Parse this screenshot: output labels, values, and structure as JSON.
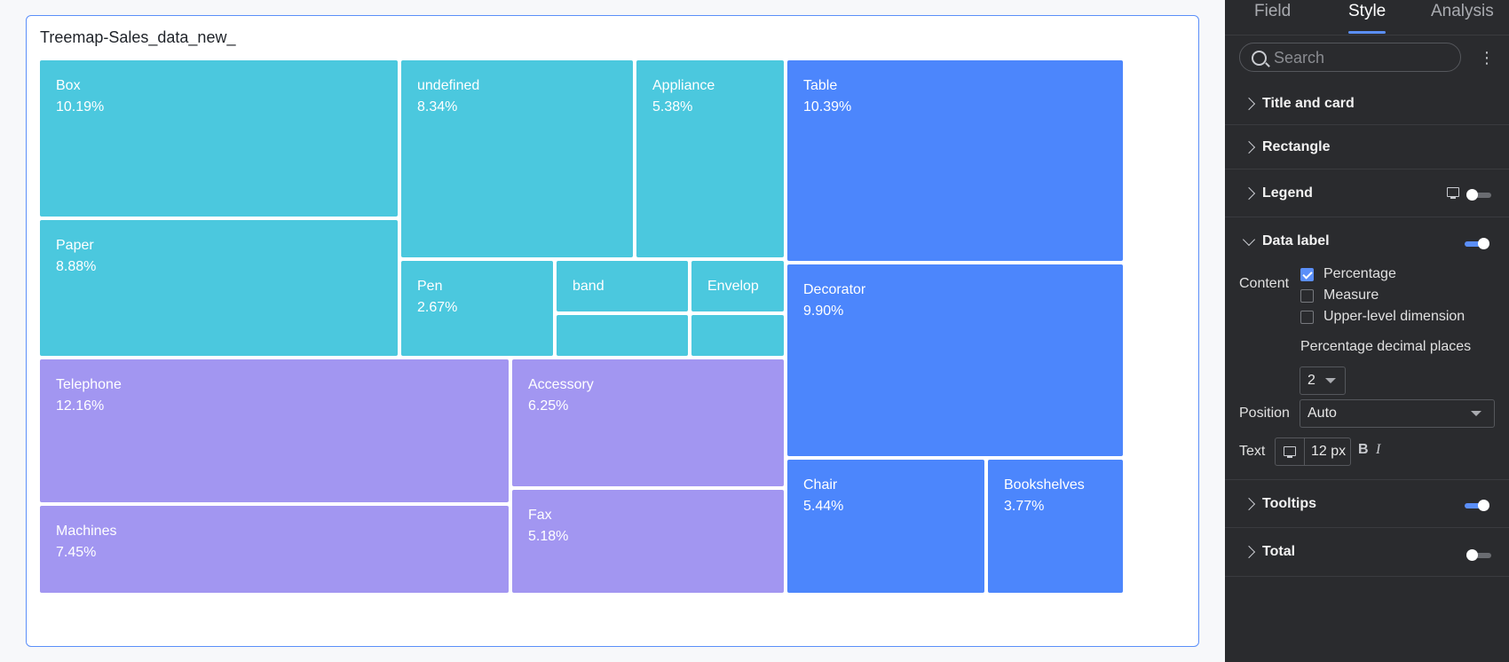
{
  "chart": {
    "title": "Treemap-Sales_data_new_"
  },
  "colors": {
    "teal": "#4bc8de",
    "purple": "#a296f1",
    "blue": "#4c86fc",
    "accent": "#5b8ff9",
    "panel_bg": "#2a2b2e"
  },
  "chart_data": {
    "type": "treemap",
    "title": "Treemap-Sales_data_new_",
    "groups": [
      {
        "color": "#4bc8de",
        "items": [
          {
            "name": "Box",
            "percentage": "10.19%"
          },
          {
            "name": "Paper",
            "percentage": "8.88%"
          },
          {
            "name": "undefined",
            "percentage": "8.34%"
          },
          {
            "name": "Appliance",
            "percentage": "5.38%"
          },
          {
            "name": "Pen",
            "percentage": "2.67%"
          },
          {
            "name": "band",
            "percentage": ""
          },
          {
            "name": "Envelop",
            "percentage": ""
          },
          {
            "name": "",
            "percentage": ""
          },
          {
            "name": "",
            "percentage": ""
          }
        ]
      },
      {
        "color": "#a296f1",
        "items": [
          {
            "name": "Telephone",
            "percentage": "12.16%"
          },
          {
            "name": "Machines",
            "percentage": "7.45%"
          },
          {
            "name": "Accessory",
            "percentage": "6.25%"
          },
          {
            "name": "Fax",
            "percentage": "5.18%"
          }
        ]
      },
      {
        "color": "#4c86fc",
        "items": [
          {
            "name": "Table",
            "percentage": "10.39%"
          },
          {
            "name": "Decorator",
            "percentage": "9.90%"
          },
          {
            "name": "Chair",
            "percentage": "5.44%"
          },
          {
            "name": "Bookshelves",
            "percentage": "3.77%"
          }
        ]
      }
    ]
  },
  "panel": {
    "tabs": [
      {
        "label": "Field"
      },
      {
        "label": "Style"
      },
      {
        "label": "Analysis"
      }
    ],
    "search": {
      "placeholder": "Search"
    },
    "sections": {
      "title_card": "Title and card",
      "rectangle": "Rectangle",
      "legend": "Legend",
      "data_label": "Data label",
      "tooltips": "Tooltips",
      "total": "Total"
    },
    "data_label": {
      "content_label": "Content",
      "options": {
        "percentage": "Percentage",
        "measure": "Measure",
        "upper_level": "Upper-level dimension"
      },
      "decimal_label": "Percentage decimal places",
      "decimal_value": "2",
      "position_label": "Position",
      "position_value": "Auto",
      "text_label": "Text",
      "text_size": "12 px",
      "bold": "B",
      "italic": "I"
    }
  }
}
